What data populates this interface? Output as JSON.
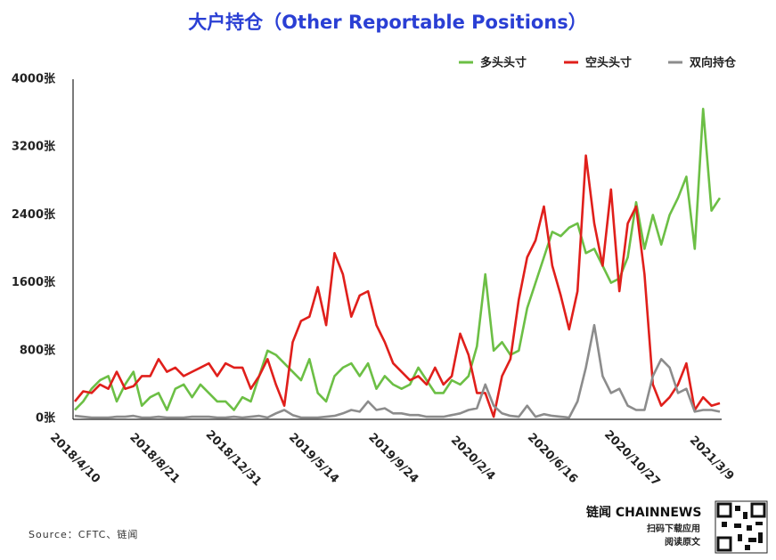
{
  "chart_data": {
    "type": "line",
    "title": "大户持仓（Other Reportable Positions）",
    "source": "Source：CFTC、链闻",
    "logo": {
      "brand": "链闻 CHAINNEWS",
      "line1": "扫码下载应用",
      "line2": "阅读原文"
    },
    "x": [
      "2018/4/10",
      "2018/4/24",
      "2018/5/8",
      "2018/5/22",
      "2018/6/5",
      "2018/6/19",
      "2018/7/3",
      "2018/7/17",
      "2018/7/31",
      "2018/8/14",
      "2018/8/28",
      "2018/9/11",
      "2018/9/25",
      "2018/10/9",
      "2018/10/23",
      "2018/11/6",
      "2018/11/20",
      "2018/12/4",
      "2018/12/18",
      "2019/1/1",
      "2019/1/15",
      "2019/1/29",
      "2019/2/12",
      "2019/2/26",
      "2019/3/12",
      "2019/3/26",
      "2019/4/9",
      "2019/4/23",
      "2019/5/7",
      "2019/5/21",
      "2019/6/4",
      "2019/6/18",
      "2019/7/2",
      "2019/7/16",
      "2019/7/30",
      "2019/8/13",
      "2019/8/27",
      "2019/9/10",
      "2019/9/24",
      "2019/10/8",
      "2019/10/22",
      "2019/11/5",
      "2019/11/19",
      "2019/12/3",
      "2019/12/17",
      "2019/12/31",
      "2020/1/14",
      "2020/1/28",
      "2020/2/11",
      "2020/2/25",
      "2020/3/10",
      "2020/3/24",
      "2020/4/7",
      "2020/4/21",
      "2020/5/5",
      "2020/5/19",
      "2020/6/2",
      "2020/6/16",
      "2020/6/30",
      "2020/7/14",
      "2020/7/28",
      "2020/8/11",
      "2020/8/25",
      "2020/9/8",
      "2020/9/22",
      "2020/10/6",
      "2020/10/20",
      "2020/11/3",
      "2020/11/17",
      "2020/12/1",
      "2020/12/15",
      "2020/12/29",
      "2021/1/12",
      "2021/1/26",
      "2021/2/9",
      "2021/2/23",
      "2021/3/9",
      "2021/3/23"
    ],
    "xlim": [
      "2018/4/10",
      "2021/3/23"
    ],
    "xticks": [
      "2018/4/10",
      "2018/8/21",
      "2018/12/31",
      "2019/5/14",
      "2019/9/24",
      "2020/2/4",
      "2020/6/16",
      "2020/10/27",
      "2021/3/9"
    ],
    "ylim": [
      0,
      4000
    ],
    "yticks": [
      {
        "value": 0,
        "label": "0张"
      },
      {
        "value": 800,
        "label": "800张"
      },
      {
        "value": 1600,
        "label": "1600张"
      },
      {
        "value": 2400,
        "label": "2400张"
      },
      {
        "value": 3200,
        "label": "3200张"
      },
      {
        "value": 4000,
        "label": "4000张"
      }
    ],
    "grid": false,
    "legend": "top-right",
    "series": [
      {
        "name": "多头头寸",
        "color": "#6cbf45",
        "values": [
          100,
          200,
          350,
          450,
          500,
          200,
          400,
          550,
          150,
          250,
          300,
          100,
          350,
          400,
          250,
          400,
          300,
          200,
          200,
          100,
          250,
          200,
          500,
          800,
          750,
          650,
          550,
          450,
          700,
          300,
          200,
          500,
          600,
          650,
          500,
          650,
          350,
          500,
          400,
          350,
          400,
          600,
          450,
          300,
          300,
          450,
          400,
          500,
          850,
          1700,
          800,
          900,
          750,
          800,
          1300,
          1600,
          1900,
          2200,
          2150,
          2250,
          2300,
          1950,
          2000,
          1800,
          1600,
          1650,
          1900,
          2550,
          2000,
          2400,
          2050,
          2400,
          2600,
          2850,
          2000,
          3650,
          2450,
          2600
        ]
      },
      {
        "name": "空头头寸",
        "color": "#e01f1b",
        "values": [
          200,
          320,
          300,
          400,
          350,
          550,
          350,
          380,
          500,
          500,
          700,
          550,
          600,
          500,
          550,
          600,
          650,
          500,
          650,
          600,
          600,
          350,
          500,
          700,
          400,
          150,
          900,
          1150,
          1200,
          1550,
          1100,
          1950,
          1700,
          1200,
          1450,
          1500,
          1100,
          900,
          650,
          550,
          450,
          500,
          400,
          600,
          400,
          500,
          1000,
          750,
          300,
          300,
          20,
          500,
          700,
          1400,
          1900,
          2100,
          2500,
          1800,
          1450,
          1050,
          1500,
          3100,
          2300,
          1800,
          2700,
          1500,
          2300,
          2500,
          1700,
          400,
          150,
          250,
          400,
          650,
          100,
          250,
          150,
          180
        ]
      },
      {
        "name": "双向持仓",
        "color": "#8c8c8c",
        "values": [
          30,
          20,
          10,
          10,
          10,
          20,
          20,
          30,
          10,
          10,
          20,
          10,
          10,
          10,
          20,
          20,
          20,
          10,
          10,
          20,
          10,
          20,
          30,
          10,
          60,
          100,
          40,
          10,
          10,
          10,
          20,
          30,
          60,
          100,
          80,
          200,
          100,
          120,
          60,
          60,
          40,
          40,
          20,
          20,
          20,
          40,
          60,
          100,
          120,
          400,
          150,
          60,
          30,
          20,
          150,
          20,
          50,
          30,
          20,
          10,
          200,
          600,
          1100,
          500,
          300,
          350,
          150,
          100,
          100,
          500,
          700,
          600,
          300,
          350,
          80,
          100,
          100,
          80
        ]
      }
    ]
  }
}
